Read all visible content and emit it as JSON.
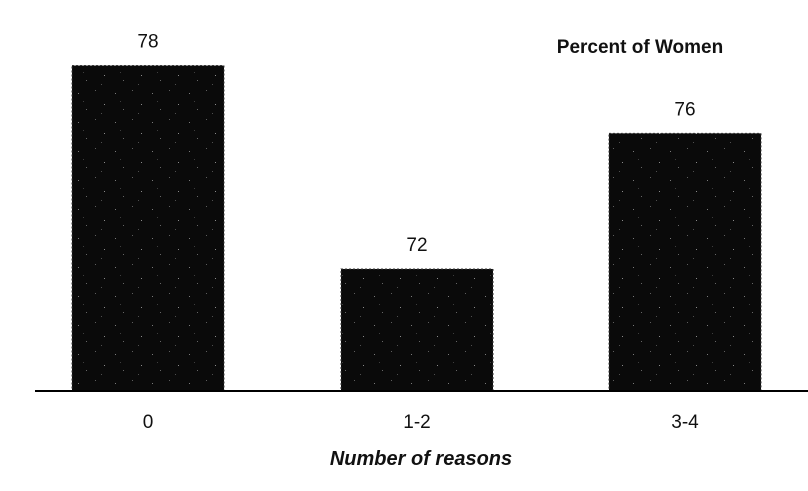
{
  "chart_data": {
    "type": "bar",
    "categories": [
      "0",
      "1-2",
      "3-4"
    ],
    "series": [
      {
        "name": "Percent of Women",
        "values": [
          78,
          72,
          76
        ]
      }
    ],
    "data_labels": [
      "78",
      "72",
      "76"
    ],
    "title": "",
    "xlabel": "Number of reasons",
    "ylabel": "",
    "ylim": [
      68.4,
      78.4
    ],
    "legend": "top-right",
    "grid": false,
    "colors": {
      "bar": "#0a0a0a",
      "axis": "#000000",
      "text": "#111111",
      "background": "#ffffff"
    }
  }
}
